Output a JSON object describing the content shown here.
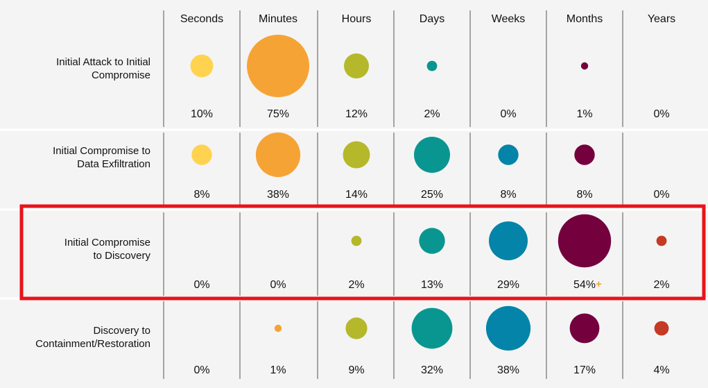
{
  "chart_data": {
    "type": "bubble-matrix",
    "columns": [
      "Seconds",
      "Minutes",
      "Hours",
      "Days",
      "Weeks",
      "Months",
      "Years"
    ],
    "column_colors": [
      "#ffd34f",
      "#f6a335",
      "#b5b82a",
      "#0a9690",
      "#0484a8",
      "#74003e",
      "#c43a24"
    ],
    "rows": [
      {
        "label_lines": [
          "Initial Attack to Initial",
          "Compromise"
        ],
        "values": [
          10,
          75,
          12,
          2,
          0,
          1,
          0
        ],
        "value_labels": [
          "10%",
          "75%",
          "12%",
          "2%",
          "0%",
          "1%",
          "0%"
        ]
      },
      {
        "label_lines": [
          "Initial Compromise to",
          "Data Exfiltration"
        ],
        "values": [
          8,
          38,
          14,
          25,
          8,
          8,
          0
        ],
        "value_labels": [
          "8%",
          "38%",
          "14%",
          "25%",
          "8%",
          "8%",
          "0%"
        ]
      },
      {
        "label_lines": [
          "Initial Compromise",
          "to Discovery"
        ],
        "values": [
          0,
          0,
          2,
          13,
          29,
          54,
          2
        ],
        "value_labels": [
          "0%",
          "0%",
          "2%",
          "13%",
          "29%",
          "54%",
          "2%"
        ],
        "highlighted": true,
        "marker": {
          "column": 5,
          "symbol": "+",
          "color": "#f6a335"
        }
      },
      {
        "label_lines": [
          "Discovery to",
          "Containment/Restoration"
        ],
        "values": [
          0,
          1,
          9,
          32,
          38,
          17,
          4
        ],
        "value_labels": [
          "0%",
          "1%",
          "9%",
          "32%",
          "38%",
          "17%",
          "4%"
        ]
      }
    ],
    "highlight_color": "#e8141a"
  }
}
